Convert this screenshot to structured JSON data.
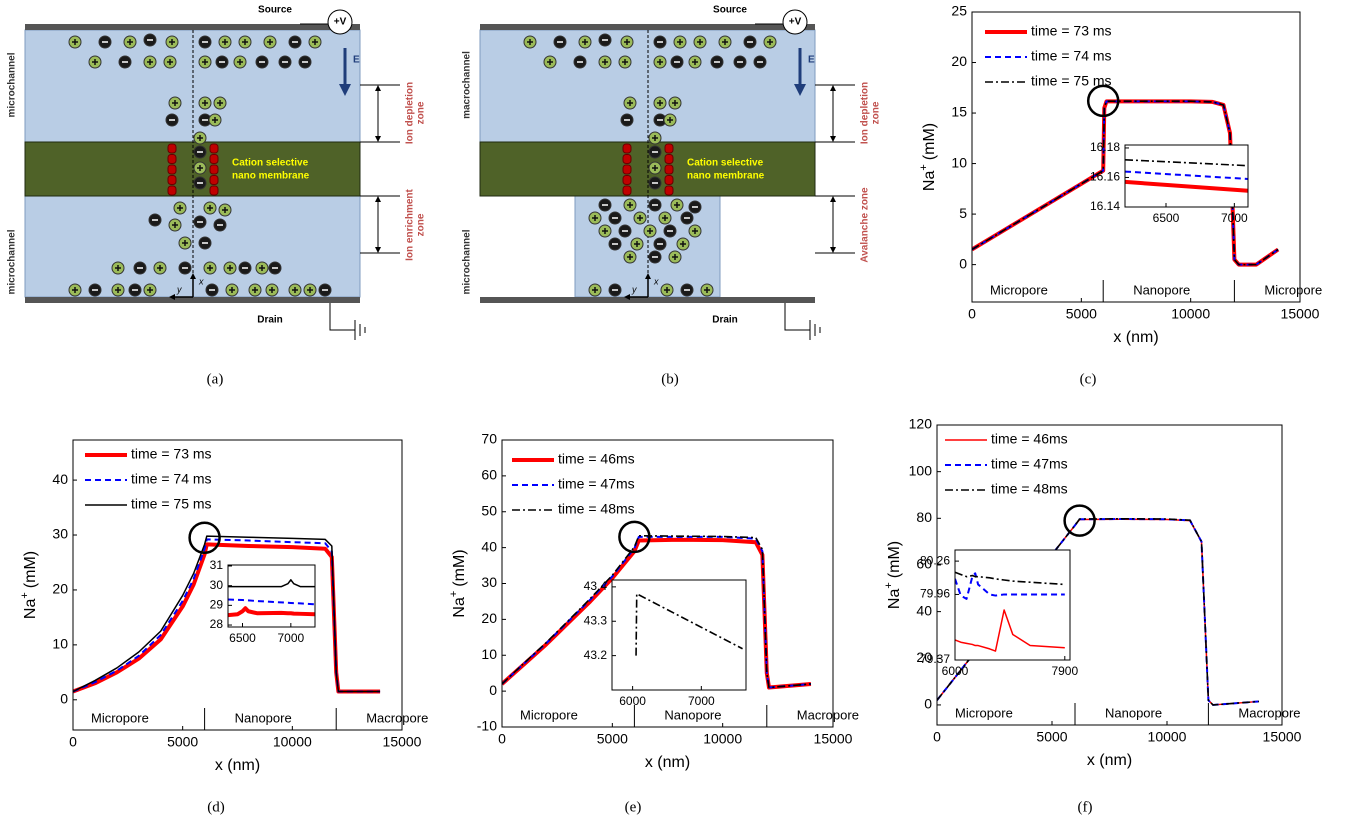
{
  "figure": {
    "panels": [
      {
        "source": "Source",
        "voltage": "+V",
        "field": "E",
        "top_channel": "microchannel",
        "bottom_channel": "microchannel",
        "upper_zone": [
          "Ion depletion",
          "zone"
        ],
        "membrane": [
          "Cation selective",
          "nano membrane"
        ],
        "lower_zone": [
          "Ion enrichment",
          "zone"
        ],
        "drain": "Drain",
        "axis_x": "x",
        "axis_y": "y",
        "caption": "(a)"
      },
      {
        "source": "Source",
        "voltage": "+V",
        "field": "E",
        "top_channel": "macrochannel",
        "bottom_channel": "microchannel",
        "upper_zone": [
          "Ion depletion",
          "zone"
        ],
        "membrane": [
          "Cation selective",
          "nano membrane"
        ],
        "lower_zone": [
          "Avalanche zone"
        ],
        "drain": "Drain",
        "axis_x": "x",
        "axis_y": "y",
        "caption": "(b)"
      }
    ]
  },
  "chart_data": [
    {
      "type": "line",
      "caption": "(c)",
      "xlabel": "x (nm)",
      "ylabel": [
        "Na",
        "+",
        "(mM)"
      ],
      "legend": "upper left",
      "grid": false,
      "xlim": [
        0,
        15000
      ],
      "ylim": [
        -3.7,
        25
      ],
      "xticks": [
        0,
        5000,
        10000,
        15000
      ],
      "yticks": [
        0,
        5,
        10,
        15,
        20,
        25
      ],
      "regions": [
        "Micropore",
        "Nanopore",
        "Micropore"
      ],
      "region_edges": [
        6000,
        12000
      ],
      "highlight": {
        "x": 6000,
        "y": 16.2
      },
      "x": [
        0,
        1000,
        2000,
        3000,
        4000,
        5000,
        6000,
        6050,
        6150,
        8000,
        10000,
        11000,
        11500,
        11800,
        12000,
        12200,
        13000,
        14000
      ],
      "series": [
        {
          "name": "time = 73 ms",
          "color": "#ff0000",
          "style": "thick",
          "values": [
            1.5,
            2.8,
            4.1,
            5.4,
            6.7,
            8,
            9.3,
            15.5,
            16.15,
            16.15,
            16.15,
            16.1,
            15.8,
            13,
            0.5,
            0,
            0,
            1.5
          ]
        },
        {
          "name": "time = 74 ms",
          "color": "#0000ff",
          "style": "dashed",
          "values": [
            1.5,
            2.8,
            4.1,
            5.4,
            6.7,
            8,
            9.3,
            15.5,
            16.16,
            16.16,
            16.16,
            16.1,
            15.8,
            13,
            0.5,
            0,
            0,
            1.5
          ]
        },
        {
          "name": "time = 75 ms",
          "color": "#000000",
          "style": "dashdot",
          "values": [
            1.5,
            2.8,
            4.1,
            5.4,
            6.7,
            8,
            9.3,
            15.5,
            16.17,
            16.17,
            16.17,
            16.1,
            15.8,
            13,
            0.5,
            0,
            0,
            1.5
          ]
        }
      ],
      "inset": {
        "xlim": [
          6200,
          7100
        ],
        "ylim": [
          16.14,
          16.182
        ],
        "xticks": [
          6500,
          7000
        ],
        "yticks": [
          16.14,
          16.16,
          16.18
        ],
        "x": [
          6200,
          7100
        ],
        "series": [
          {
            "color": "#ff0000",
            "style": "thick",
            "values": [
              16.157,
              16.151
            ]
          },
          {
            "color": "#0000ff",
            "style": "dashed",
            "values": [
              16.164,
              16.159
            ]
          },
          {
            "color": "#000000",
            "style": "dashdot",
            "values": [
              16.172,
              16.168
            ]
          }
        ]
      }
    },
    {
      "type": "line",
      "caption": "(d)",
      "xlabel": "x (nm)",
      "ylabel": [
        "Na",
        "+",
        "(mM)"
      ],
      "legend": "upper left",
      "grid": false,
      "xlim": [
        0,
        15000
      ],
      "ylim": [
        -5.5,
        47.3
      ],
      "xticks": [
        0,
        5000,
        10000,
        15000
      ],
      "yticks": [
        0,
        10,
        20,
        30,
        40
      ],
      "regions": [
        "Micropore",
        "Nanopore",
        "Macropore"
      ],
      "region_edges": [
        6000,
        12000
      ],
      "highlight": {
        "x": 6000,
        "y": 29.5
      },
      "x": [
        0,
        1000,
        2000,
        3000,
        4000,
        5000,
        5500,
        6000,
        6100,
        8000,
        10000,
        11500,
        11800,
        12000,
        12100,
        14000
      ],
      "series": [
        {
          "name": "time = 73 ms",
          "color": "#ff0000",
          "style": "thick",
          "values": [
            1.5,
            3,
            5,
            7.5,
            11,
            17,
            21,
            26.5,
            28.3,
            28,
            27.8,
            27.5,
            26,
            5,
            1.5,
            1.5
          ]
        },
        {
          "name": "time = 74 ms",
          "color": "#0000ff",
          "style": "dashed",
          "values": [
            1.5,
            3.2,
            5.3,
            8,
            11.8,
            18,
            22,
            27.5,
            29.2,
            29,
            28.7,
            28.5,
            27,
            5,
            1.5,
            1.5
          ]
        },
        {
          "name": "time = 75 ms",
          "color": "#000000",
          "style": "solid",
          "values": [
            1.5,
            3.5,
            5.8,
            8.7,
            12.5,
            19,
            23,
            28.3,
            29.8,
            29.6,
            29.4,
            29.2,
            28,
            5,
            1.5,
            1.5
          ]
        }
      ],
      "inset": {
        "xlim": [
          6350,
          7250
        ],
        "ylim": [
          27.9,
          31.05
        ],
        "xticks": [
          6500,
          7000
        ],
        "yticks": [
          28,
          29,
          30,
          31
        ],
        "x": [
          6350,
          6450,
          6500,
          6530,
          6560,
          6650,
          6900,
          6970,
          7000,
          7030,
          7100,
          7250
        ],
        "series": [
          {
            "color": "#ff0000",
            "style": "thick",
            "values": [
              28.5,
              28.55,
              28.7,
              28.85,
              28.7,
              28.6,
              28.62,
              28.6,
              28.6,
              28.58,
              28.57,
              28.55
            ]
          },
          {
            "color": "#0000ff",
            "style": "dashed",
            "values": [
              29.3,
              29.28,
              29.27,
              29.26,
              29.25,
              29.22,
              29.15,
              29.13,
              29.12,
              29.11,
              29.1,
              29.05
            ]
          },
          {
            "color": "#000000",
            "style": "solid",
            "values": [
              29.95,
              29.95,
              29.95,
              29.95,
              29.95,
              29.95,
              29.95,
              30.1,
              30.3,
              30.1,
              29.95,
              29.95
            ]
          }
        ]
      }
    },
    {
      "type": "line",
      "caption": "(e)",
      "xlabel": "x (nm)",
      "ylabel": [
        "Na",
        "+",
        "(mM)"
      ],
      "legend": "upper left",
      "grid": false,
      "xlim": [
        0,
        15000
      ],
      "ylim": [
        -10,
        70
      ],
      "xticks": [
        0,
        5000,
        10000,
        15000
      ],
      "yticks": [
        -10,
        0,
        10,
        20,
        30,
        40,
        50,
        60,
        70
      ],
      "regions": [
        "Micropore",
        "Nanopore",
        "Macropore"
      ],
      "region_edges": [
        6000,
        12000
      ],
      "highlight": {
        "x": 6000,
        "y": 43
      },
      "x": [
        0,
        1000,
        2000,
        3000,
        4000,
        5000,
        6000,
        6200,
        8000,
        10000,
        11500,
        11800,
        12000,
        12100,
        14000
      ],
      "series": [
        {
          "name": "time = 46ms",
          "color": "#ff0000",
          "style": "thick",
          "values": [
            2,
            7.5,
            13,
            19,
            25,
            31.5,
            39,
            42,
            42.2,
            42.1,
            41.5,
            38,
            5,
            1,
            2
          ]
        },
        {
          "name": "time = 47ms",
          "color": "#0000ff",
          "style": "dashed",
          "values": [
            2,
            7.7,
            13.3,
            19.4,
            25.5,
            32,
            39.8,
            43,
            43,
            43,
            42.5,
            39,
            5,
            1,
            2
          ]
        },
        {
          "name": "time = 48ms",
          "color": "#000000",
          "style": "dashdot",
          "values": [
            2,
            7.8,
            13.5,
            19.6,
            25.8,
            32.3,
            40.2,
            43.3,
            43.2,
            43.1,
            42.8,
            39.5,
            5,
            1,
            2
          ]
        }
      ],
      "inset": {
        "xlim": [
          5700,
          7650
        ],
        "ylim": [
          43.1,
          43.42
        ],
        "xticks": [
          6000,
          7000
        ],
        "yticks": [
          43.2,
          43.3,
          43.4
        ],
        "x": [
          6050,
          6060,
          7600
        ],
        "series": [
          {
            "color": "#000000",
            "style": "dashdot",
            "values": [
              43.2,
              43.38,
              43.22
            ]
          }
        ]
      }
    },
    {
      "type": "line",
      "caption": "(f)",
      "xlabel": "x (nm)",
      "ylabel": [
        "Na",
        "+",
        "(mM)"
      ],
      "legend": "upper left",
      "grid": false,
      "xlim": [
        0,
        15000
      ],
      "ylim": [
        -8.6,
        120
      ],
      "xticks": [
        0,
        5000,
        10000,
        15000
      ],
      "yticks": [
        0,
        20,
        40,
        60,
        80,
        100,
        120
      ],
      "regions": [
        "Micropore",
        "Nanopore",
        "Macropore"
      ],
      "region_edges": [
        6000,
        11800
      ],
      "highlight": {
        "x": 6200,
        "y": 79
      },
      "x": [
        0,
        1000,
        2000,
        3000,
        4000,
        5000,
        6000,
        6200,
        8000,
        10000,
        11000,
        11500,
        11800,
        12000,
        14000
      ],
      "series": [
        {
          "name": "time = 46ms",
          "color": "#ff0000",
          "style": "solid",
          "values": [
            2,
            14.5,
            27,
            39.5,
            52,
            64.5,
            77,
            79.5,
            79.6,
            79.5,
            79,
            70,
            2,
            0,
            1.5
          ]
        },
        {
          "name": "time = 47ms",
          "color": "#0000ff",
          "style": "dashed",
          "values": [
            2,
            14.5,
            27,
            39.5,
            52,
            64.5,
            77,
            79.6,
            79.7,
            79.6,
            79.1,
            70,
            2,
            0,
            1.5
          ]
        },
        {
          "name": "time = 48ms",
          "color": "#000000",
          "style": "dashdot",
          "values": [
            2,
            14.5,
            27,
            39.5,
            52,
            64.5,
            77,
            79.7,
            79.8,
            79.7,
            79.2,
            70,
            2,
            0,
            1.5
          ]
        }
      ],
      "inset": {
        "xlim": [
          6000,
          7990
        ],
        "ylim": [
          79.37,
          80.36
        ],
        "xticks": [
          6000,
          7900
        ],
        "yticks": [
          79.37,
          79.96,
          80.26
        ],
        "x": [
          6000,
          6100,
          6200,
          6300,
          6350,
          6400,
          6600,
          6700,
          6850,
          7000,
          7300,
          7900
        ],
        "series": [
          {
            "color": "#ff0000",
            "style": "solid",
            "values": [
              79.55,
              79.53,
              79.52,
              79.51,
              79.5,
              79.5,
              79.47,
              79.45,
              79.82,
              79.6,
              79.5,
              79.48
            ]
          },
          {
            "color": "#0000ff",
            "style": "dashed",
            "values": [
              80.1,
              79.95,
              79.92,
              80.12,
              80.15,
              80.05,
              79.96,
              79.95,
              79.96,
              79.96,
              79.96,
              79.96
            ]
          },
          {
            "color": "#000000",
            "style": "dashdot",
            "values": [
              80.16,
              80.14,
              80.12,
              80.13,
              80.12,
              80.12,
              80.11,
              80.1,
              80.09,
              80.08,
              80.07,
              80.05
            ]
          }
        ]
      }
    }
  ]
}
